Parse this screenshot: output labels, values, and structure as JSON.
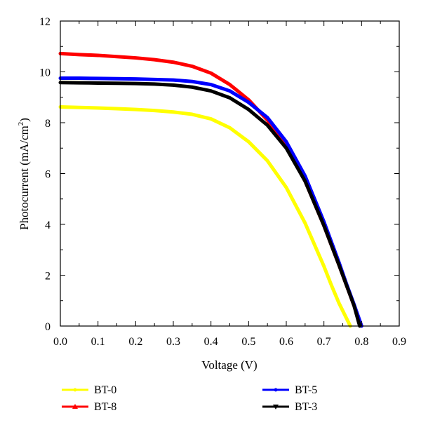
{
  "chart_data": {
    "type": "line",
    "xlabel": "Voltage (V)",
    "ylabel": "Photocurrent (mA/cm2)",
    "ylabel_parts": {
      "main": "Photocurrent (mA/cm",
      "sup": "2",
      "end": ")"
    },
    "xlim": [
      0,
      0.9
    ],
    "ylim": [
      0,
      12
    ],
    "xticks": [
      "0.0",
      "0.1",
      "0.2",
      "0.3",
      "0.4",
      "0.5",
      "0.6",
      "0.7",
      "0.8",
      "0.9"
    ],
    "yticks": [
      "0",
      "2",
      "4",
      "6",
      "8",
      "10",
      "12"
    ],
    "grid": false,
    "legend_position": "bottom",
    "series": [
      {
        "name": "BT-0",
        "color": "#ffff00",
        "x": [
          0,
          0.05,
          0.1,
          0.15,
          0.2,
          0.25,
          0.3,
          0.35,
          0.4,
          0.45,
          0.5,
          0.55,
          0.6,
          0.65,
          0.7,
          0.72,
          0.74,
          0.76,
          0.77
        ],
        "y": [
          8.62,
          8.6,
          8.58,
          8.55,
          8.52,
          8.48,
          8.42,
          8.33,
          8.15,
          7.8,
          7.25,
          6.5,
          5.45,
          4.05,
          2.35,
          1.6,
          0.9,
          0.3,
          0
        ]
      },
      {
        "name": "BT-8",
        "color": "#ff0000",
        "x": [
          0,
          0.05,
          0.1,
          0.15,
          0.2,
          0.25,
          0.3,
          0.35,
          0.4,
          0.45,
          0.5,
          0.55,
          0.6,
          0.65,
          0.7,
          0.74,
          0.76,
          0.78,
          0.8
        ],
        "y": [
          10.72,
          10.68,
          10.65,
          10.6,
          10.55,
          10.48,
          10.38,
          10.22,
          9.95,
          9.5,
          8.9,
          8.1,
          7.05,
          5.7,
          3.95,
          2.4,
          1.6,
          0.8,
          0
        ]
      },
      {
        "name": "BT-5",
        "color": "#0000ff",
        "x": [
          0,
          0.05,
          0.1,
          0.15,
          0.2,
          0.25,
          0.3,
          0.35,
          0.4,
          0.45,
          0.5,
          0.55,
          0.6,
          0.65,
          0.7,
          0.74,
          0.76,
          0.78,
          0.8
        ],
        "y": [
          9.75,
          9.75,
          9.74,
          9.73,
          9.72,
          9.7,
          9.68,
          9.62,
          9.5,
          9.25,
          8.8,
          8.2,
          7.25,
          5.9,
          4.1,
          2.5,
          1.65,
          0.85,
          0
        ]
      },
      {
        "name": "BT-3",
        "color": "#000000",
        "x": [
          0,
          0.05,
          0.1,
          0.15,
          0.2,
          0.25,
          0.3,
          0.35,
          0.4,
          0.45,
          0.5,
          0.55,
          0.6,
          0.65,
          0.7,
          0.74,
          0.76,
          0.78,
          0.795
        ],
        "y": [
          9.58,
          9.57,
          9.56,
          9.55,
          9.54,
          9.52,
          9.48,
          9.4,
          9.25,
          8.98,
          8.52,
          7.9,
          7.0,
          5.7,
          3.95,
          2.4,
          1.6,
          0.8,
          0
        ]
      }
    ],
    "legend": [
      {
        "name": "BT-0",
        "color": "#ffff00",
        "marker": "circle"
      },
      {
        "name": "BT-5",
        "color": "#0000ff",
        "marker": "circle"
      },
      {
        "name": "BT-8",
        "color": "#ff0000",
        "marker": "triangle-up"
      },
      {
        "name": "BT-3",
        "color": "#000000",
        "marker": "triangle-down"
      }
    ]
  }
}
